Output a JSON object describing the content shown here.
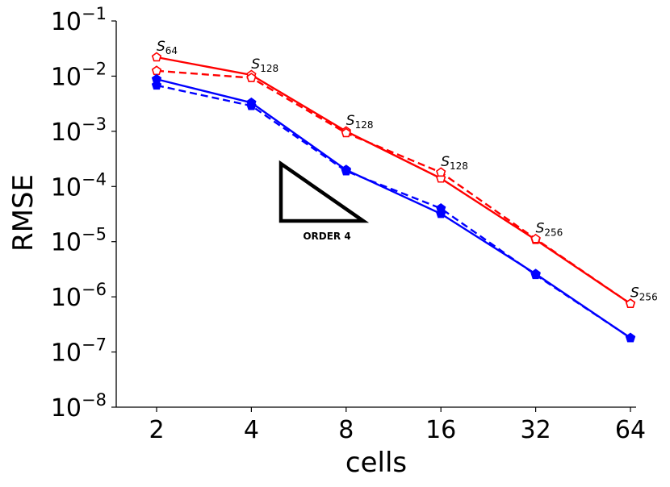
{
  "chart_data": {
    "type": "line",
    "title": "",
    "xlabel": "cells",
    "ylabel": "RMSE",
    "x_scale": "log2",
    "y_scale": "log10",
    "categories": [
      "2",
      "4",
      "8",
      "16",
      "32",
      "64"
    ],
    "x": [
      2,
      4,
      8,
      16,
      32,
      64
    ],
    "ylim": [
      1e-08,
      0.1
    ],
    "y_tick_exponents": [
      "−1",
      "−2",
      "−3",
      "−4",
      "−5",
      "−6",
      "−7",
      "−8"
    ],
    "y_tick_values": [
      0.1,
      0.01,
      0.001,
      0.0001,
      1e-05,
      1e-06,
      1e-07,
      1e-08
    ],
    "series": [
      {
        "name": "red-solid",
        "color": "#ff0000",
        "dash": "solid",
        "marker": "pentagon-open",
        "values": [
          0.022,
          0.0105,
          0.001,
          0.00014,
          1.08e-05,
          7.5e-07
        ]
      },
      {
        "name": "red-dashed",
        "color": "#ff0000",
        "dash": "dashed",
        "marker": "pentagon-open",
        "values": [
          0.0125,
          0.0093,
          0.00093,
          0.00018,
          1.12e-05,
          7.5e-07
        ]
      },
      {
        "name": "blue-solid",
        "color": "#0000ff",
        "dash": "solid",
        "marker": "pentagon-filled",
        "values": [
          0.0088,
          0.0033,
          0.0002,
          3.2e-05,
          2.6e-06,
          1.8e-07
        ]
      },
      {
        "name": "blue-dashed",
        "color": "#0000ff",
        "dash": "dashed",
        "marker": "pentagon-filled",
        "values": [
          0.0068,
          0.0029,
          0.00019,
          4e-05,
          2.5e-06,
          1.8e-07
        ]
      }
    ],
    "annotations": [
      {
        "base": "S",
        "sub": "64",
        "x": 2
      },
      {
        "base": "S",
        "sub": "128",
        "x": 4
      },
      {
        "base": "S",
        "sub": "128",
        "x": 8
      },
      {
        "base": "S",
        "sub": "128",
        "x": 16
      },
      {
        "base": "S",
        "sub": "256",
        "x": 32
      },
      {
        "base": "S",
        "sub": "256",
        "x": 64
      }
    ],
    "order_triangle": {
      "label": "ORDER 4"
    }
  }
}
